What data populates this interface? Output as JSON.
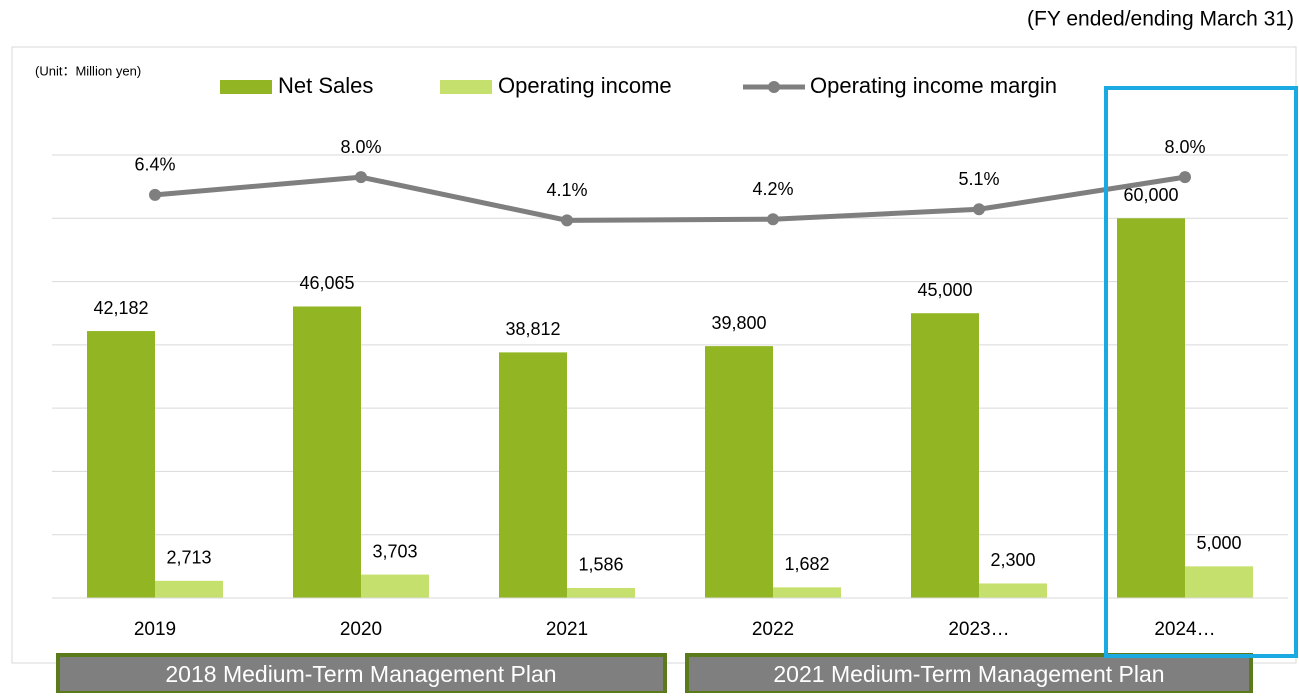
{
  "chart_data": {
    "type": "bar",
    "note": "(FY ended/ending March 31)",
    "unit": "(Unit：Million yen)",
    "categories": [
      "2019",
      "2020",
      "2021",
      "2022",
      "2023…",
      "2024…"
    ],
    "series": [
      {
        "name": "Net Sales",
        "color": "#92b623",
        "values": [
          42182,
          46065,
          38812,
          39800,
          45000,
          60000
        ],
        "value_labels": [
          "42,182",
          "46,065",
          "38,812",
          "39,800",
          "45,000",
          "60,000"
        ]
      },
      {
        "name": "Operating income",
        "color": "#c5e06d",
        "values": [
          2713,
          3703,
          1586,
          1682,
          2300,
          5000
        ],
        "value_labels": [
          "2,713",
          "3,703",
          "1,586",
          "1,682",
          "2,300",
          "5,000"
        ]
      },
      {
        "name": "Operating income margin",
        "color": "#7f7f7f",
        "type": "line",
        "axis": "y2",
        "values": [
          6.4,
          8.0,
          4.1,
          4.2,
          5.1,
          8.0
        ],
        "value_labels": [
          "6.4%",
          "8.0%",
          "4.1%",
          "4.2%",
          "5.1%",
          "8.0%"
        ]
      }
    ],
    "ylim": [
      0,
      70000
    ],
    "yticks": [
      0,
      10000,
      20000,
      30000,
      40000,
      50000,
      60000,
      70000
    ],
    "y2lim": [
      -30,
      10
    ],
    "grid": true,
    "plans": [
      {
        "label": "2018 Medium-Term Management Plan"
      },
      {
        "label": "2021 Medium-Term Management Plan"
      }
    ]
  }
}
